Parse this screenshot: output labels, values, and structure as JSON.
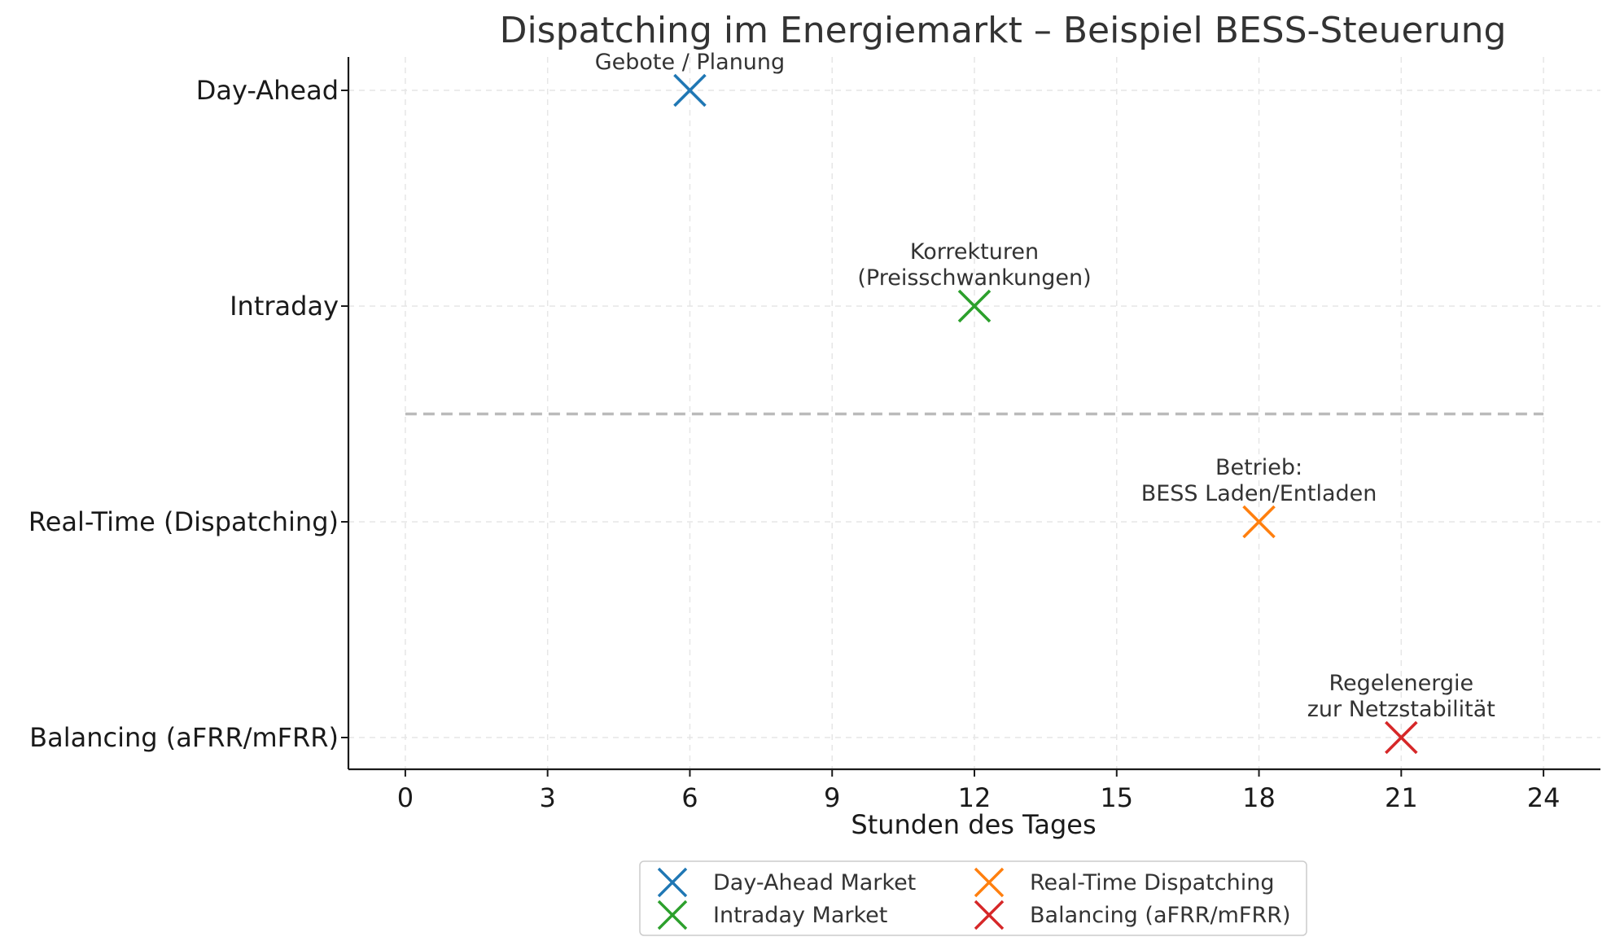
{
  "chart_data": {
    "type": "scatter",
    "title": "Dispatching im Energiemarkt – Beispiel BESS-Steuerung",
    "xlabel": "Stunden des Tages",
    "ylabel": "",
    "xlim": [
      -1.2,
      25.2
    ],
    "xticks": [
      0,
      3,
      6,
      9,
      12,
      15,
      18,
      21,
      24
    ],
    "ycategories": [
      "Day-Ahead",
      "Intraday",
      "Real-Time (Dispatching)",
      "Balancing (aFRR/mFRR)"
    ],
    "grid": true,
    "marker": "x",
    "series": [
      {
        "name": "Day-Ahead Market",
        "x": 6,
        "category": "Day-Ahead",
        "color": "#1f77b4",
        "annotation": [
          "Gebote / Planung"
        ]
      },
      {
        "name": "Intraday Market",
        "x": 12,
        "category": "Intraday",
        "color": "#2ca02c",
        "annotation": [
          "Korrekturen",
          "(Preisschwankungen)"
        ]
      },
      {
        "name": "Real-Time Dispatching",
        "x": 18,
        "category": "Real-Time (Dispatching)",
        "color": "#ff7f0e",
        "annotation": [
          "Betrieb:",
          "BESS Laden/Entladen"
        ]
      },
      {
        "name": "Balancing (aFRR/mFRR)",
        "x": 21,
        "category": "Balancing (aFRR/mFRR)",
        "color": "#d62728",
        "annotation": [
          "Regelenergie",
          "zur Netzstabilität"
        ]
      }
    ],
    "separator": {
      "between": [
        "Intraday",
        "Real-Time (Dispatching)"
      ],
      "x_from": 0,
      "x_to": 24,
      "style": "dashed",
      "color": "#bbbbbb"
    },
    "legend": {
      "placement": "bottom-center",
      "columns": 2
    }
  }
}
